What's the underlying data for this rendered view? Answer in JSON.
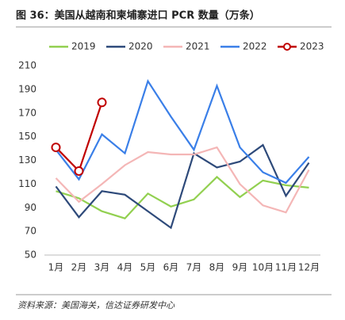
{
  "chart_data": {
    "type": "line",
    "title": "图 36：美国从越南和柬埔寨进口 PCR 数量（万条）",
    "source": "资料来源：美国海关，信达证券研发中心",
    "categories": [
      "1月",
      "2月",
      "3月",
      "4月",
      "5月",
      "6月",
      "7月",
      "8月",
      "9月",
      "10月",
      "11月",
      "12月"
    ],
    "series": [
      {
        "name": "2019",
        "color": "#92d050",
        "values": [
          104,
          98,
          87,
          81,
          102,
          91,
          97,
          116,
          99,
          113,
          109,
          107
        ]
      },
      {
        "name": "2020",
        "color": "#2e4a7a",
        "values": [
          108,
          82,
          104,
          101,
          87,
          73,
          136,
          124,
          129,
          143,
          100,
          128
        ]
      },
      {
        "name": "2021",
        "color": "#f4b6b6",
        "values": [
          115,
          95,
          110,
          126,
          137,
          135,
          135,
          141,
          110,
          92,
          86,
          122
        ]
      },
      {
        "name": "2022",
        "color": "#3a7fe8",
        "values": [
          139,
          114,
          152,
          136,
          197,
          167,
          139,
          193,
          141,
          120,
          111,
          133
        ]
      },
      {
        "name": "2023",
        "color": "#c00000",
        "marker": "circle",
        "values": [
          141,
          121,
          179,
          null,
          null,
          null,
          null,
          null,
          null,
          null,
          null,
          null
        ]
      }
    ],
    "ylim": [
      50,
      210
    ],
    "yticks": [
      50,
      70,
      90,
      110,
      130,
      150,
      170,
      190,
      210
    ],
    "grid": false,
    "legend": "top"
  }
}
